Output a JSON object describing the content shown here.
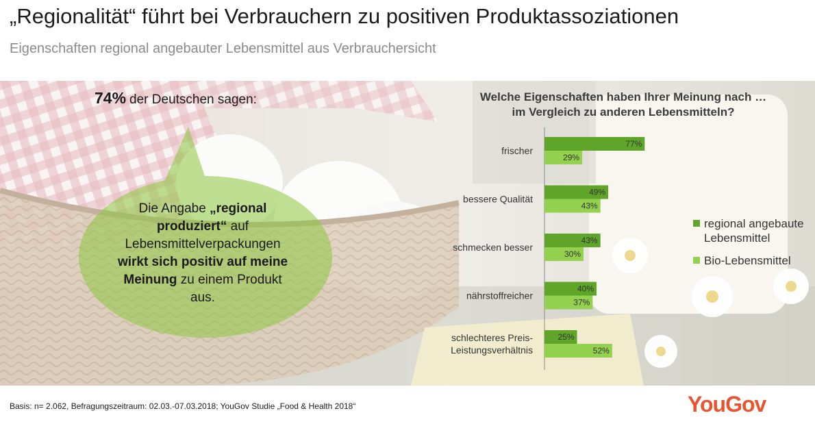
{
  "title": "„Regionalität“ führt bei Verbrauchern zu positiven Produktassoziationen",
  "subtitle": "Eigenschaften regional angebauter Lebensmittel aus Verbrauchersicht",
  "callout": {
    "percent": "74%",
    "text": "der Deutschen sagen:",
    "statement_1": "Die Angabe ",
    "statement_bold_1": "„regional produziert“",
    "statement_2": " auf Lebensmittelverpackungen ",
    "statement_bold_2": "wirkt sich positiv auf meine Meinung",
    "statement_3": " zu einem Produkt aus."
  },
  "question": {
    "line1": "Welche Eigenschaften haben Ihrer Meinung nach …",
    "line2": "im Vergleich zu anderen Lebensmitteln?"
  },
  "chart_data": {
    "type": "bar",
    "orientation": "horizontal",
    "categories": [
      "frischer",
      "bessere Qualität",
      "schmecken besser",
      "nährstoffreicher",
      "schlechteres Preis-Leistungsverhältnis"
    ],
    "category_lines": [
      [
        "frischer"
      ],
      [
        "bessere Qualität"
      ],
      [
        "schmecken besser"
      ],
      [
        "nährstoffreicher"
      ],
      [
        "schlechteres Preis-",
        "Leistungsverhältnis"
      ]
    ],
    "series": [
      {
        "name": "regional angebaute Lebensmittel",
        "values": [
          77,
          49,
          43,
          40,
          25
        ],
        "labels": [
          "77%",
          "49%",
          "43%",
          "40%",
          "25%"
        ]
      },
      {
        "name": "Bio-Lebensmittel",
        "values": [
          29,
          43,
          30,
          37,
          52
        ],
        "labels": [
          "29%",
          "43%",
          "30%",
          "37%",
          "52%"
        ]
      }
    ],
    "xlim": [
      0,
      100
    ],
    "grid": false,
    "legend_position": "right",
    "colors": [
      "#5ea52a",
      "#93d14e"
    ]
  },
  "legend": {
    "item1_line1": "regional angebaute",
    "item1_line2": "Lebensmittel",
    "item2": "Bio-Lebensmittel"
  },
  "footer": "Basis: n= 2.062, Befragungszeitraum: 02.03.-07.03.2018; YouGov Studie „Food & Health 2018“",
  "logo": "YouGov"
}
